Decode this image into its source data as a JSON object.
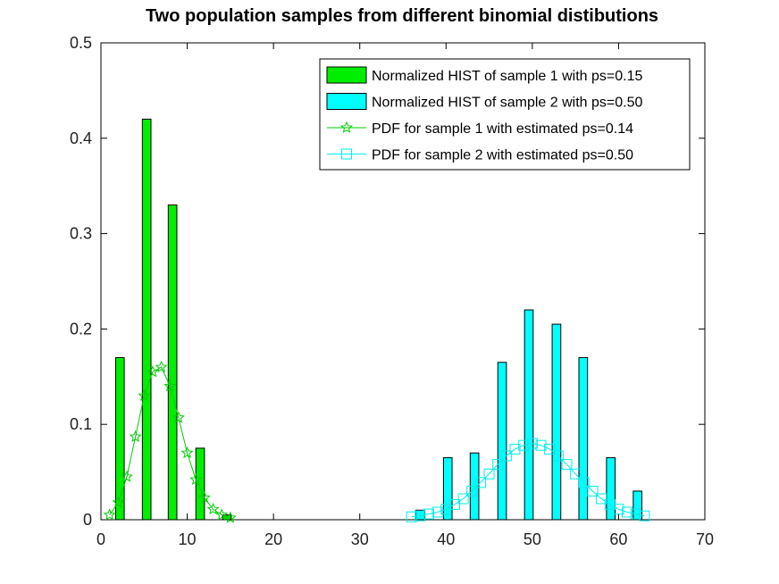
{
  "chart_data": {
    "type": "bar",
    "title": "Two population samples from different binomial distibutions",
    "xlabel": "",
    "ylabel": "",
    "xlim": [
      0,
      70
    ],
    "ylim": [
      0,
      0.5
    ],
    "x_ticks": [
      "0",
      "10",
      "20",
      "30",
      "40",
      "50",
      "60",
      "70"
    ],
    "y_ticks": [
      "0",
      "0.1",
      "0.2",
      "0.3",
      "0.4",
      "0.5"
    ],
    "grid": false,
    "legend_position": "top-right",
    "series": [
      {
        "name": "Normalized HIST of sample 1 with ps=0.15",
        "kind": "bar",
        "color": "#00ee00",
        "bar_width": 1.0,
        "x": [
          2.2,
          5.3,
          8.3,
          11.5,
          14.6
        ],
        "values": [
          0.17,
          0.42,
          0.33,
          0.075,
          0.005
        ]
      },
      {
        "name": "Normalized HIST of sample 2 with ps=0.50",
        "kind": "bar",
        "color": "#00ffff",
        "bar_width": 1.0,
        "x": [
          37.0,
          40.2,
          43.3,
          46.5,
          49.6,
          52.8,
          55.9,
          59.1,
          62.2
        ],
        "values": [
          0.01,
          0.065,
          0.07,
          0.165,
          0.22,
          0.205,
          0.17,
          0.065,
          0.03
        ]
      },
      {
        "name": "PDF for sample 1 with estimated ps=0.14",
        "kind": "line",
        "marker": "star",
        "color": "#00cc00",
        "x": [
          1,
          2,
          3,
          4,
          5,
          6,
          7,
          8,
          9,
          10,
          11,
          12,
          13,
          14,
          15
        ],
        "values": [
          0.005,
          0.018,
          0.045,
          0.087,
          0.13,
          0.155,
          0.16,
          0.14,
          0.107,
          0.07,
          0.042,
          0.023,
          0.011,
          0.005,
          0.002
        ]
      },
      {
        "name": "PDF for sample 2 with estimated ps=0.50",
        "kind": "line",
        "marker": "square",
        "color": "#00eeee",
        "x": [
          36,
          37,
          38,
          39,
          40,
          41,
          42,
          43,
          44,
          45,
          46,
          47,
          48,
          49,
          50,
          51,
          52,
          53,
          54,
          55,
          56,
          57,
          58,
          59,
          60,
          61,
          62,
          63
        ],
        "values": [
          0.003,
          0.004,
          0.006,
          0.008,
          0.011,
          0.016,
          0.022,
          0.03,
          0.039,
          0.048,
          0.058,
          0.067,
          0.074,
          0.078,
          0.08,
          0.078,
          0.074,
          0.067,
          0.058,
          0.048,
          0.039,
          0.03,
          0.022,
          0.016,
          0.011,
          0.008,
          0.006,
          0.004
        ]
      }
    ]
  }
}
